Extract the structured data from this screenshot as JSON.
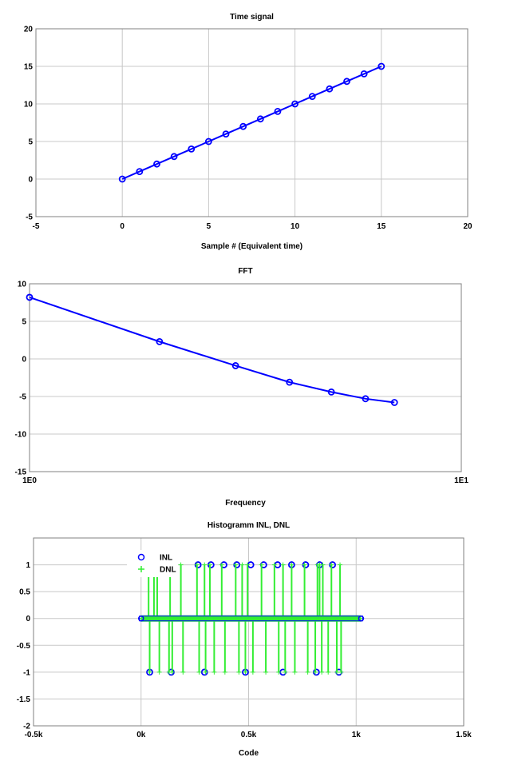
{
  "chart_data": [
    {
      "id": "time",
      "type": "line",
      "title": "Time signal",
      "xlabel": "Sample # (Equivalent time)",
      "ylabel": "",
      "xlim": [
        -5,
        20
      ],
      "ylim": [
        -5,
        20
      ],
      "xticks": [
        -5,
        0,
        5,
        10,
        15,
        20
      ],
      "yticks": [
        -5,
        0,
        5,
        10,
        15,
        20
      ],
      "xtick_labels": [
        "-5",
        "0",
        "5",
        "10",
        "15",
        "20"
      ],
      "ytick_labels": [
        "-5",
        "0",
        "5",
        "10",
        "15",
        "20"
      ],
      "grid": true,
      "series": [
        {
          "color": "#0000ff",
          "marker": "circle",
          "line": true,
          "x": [
            0,
            1,
            2,
            3,
            4,
            5,
            6,
            7,
            8,
            9,
            10,
            11,
            12,
            13,
            14,
            15
          ],
          "y": [
            0,
            1,
            2,
            3,
            4,
            5,
            6,
            7,
            8,
            9,
            10,
            11,
            12,
            13,
            14,
            15
          ]
        }
      ]
    },
    {
      "id": "fft",
      "type": "line",
      "title": "FFT",
      "xlabel": "Frequency",
      "ylabel": "",
      "xscale": "log",
      "xlim": [
        1,
        10
      ],
      "ylim": [
        -15,
        10
      ],
      "xticks": [
        1,
        10
      ],
      "yticks": [
        -15,
        -10,
        -5,
        0,
        5,
        10
      ],
      "xtick_labels": [
        "1E0",
        "1E1"
      ],
      "ytick_labels": [
        "-15",
        "-10",
        "-5",
        "0",
        "5",
        "10"
      ],
      "grid": true,
      "series": [
        {
          "color": "#0000ff",
          "marker": "circle",
          "line": true,
          "x": [
            1,
            2,
            3,
            4,
            5,
            6,
            7
          ],
          "y": [
            8.2,
            2.3,
            -0.9,
            -3.1,
            -4.4,
            -5.3,
            -5.8
          ]
        }
      ]
    },
    {
      "id": "hist",
      "type": "scatter",
      "title": "Histogramm INL, DNL",
      "xlabel": "Code",
      "ylabel": "",
      "xlim": [
        -500,
        1500
      ],
      "ylim": [
        -2,
        1.5
      ],
      "xticks": [
        -500,
        0,
        500,
        1000,
        1500
      ],
      "yticks": [
        -2,
        -1.5,
        -1,
        -0.5,
        0,
        0.5,
        1
      ],
      "xtick_labels": [
        "-0.5k",
        "0k",
        "0.5k",
        "1k",
        "1.5k"
      ],
      "ytick_labels": [
        "-2",
        "-1.5",
        "-1",
        "-0.5",
        "0",
        "0.5",
        "1"
      ],
      "grid": true,
      "legend": {
        "placement": "top-left",
        "entries": [
          "INL",
          "DNL"
        ]
      },
      "series": [
        {
          "name": "INL",
          "color": "#0000ff",
          "marker": "circle",
          "line": false,
          "x": [
            40,
            140,
            295,
            485,
            660,
            815,
            920,
            265,
            325,
            385,
            445,
            510,
            570,
            635,
            700,
            765,
            830,
            890
          ],
          "y": [
            -1,
            -1,
            -1,
            -1,
            -1,
            -1,
            -1,
            1,
            1,
            1,
            1,
            1,
            1,
            1,
            1,
            1,
            1,
            1
          ]
        },
        {
          "name": "DNL",
          "color": "#33ee33",
          "marker": "plus",
          "line": false,
          "stems": true,
          "up_x": [
            35,
            60,
            75,
            135,
            185,
            260,
            295,
            320,
            375,
            440,
            470,
            495,
            560,
            620,
            660,
            700,
            760,
            820,
            830,
            845,
            885,
            925
          ],
          "down_x": [
            40,
            85,
            130,
            145,
            195,
            270,
            300,
            340,
            390,
            455,
            485,
            520,
            580,
            640,
            670,
            715,
            775,
            810,
            840,
            870,
            910,
            930
          ]
        }
      ]
    }
  ]
}
